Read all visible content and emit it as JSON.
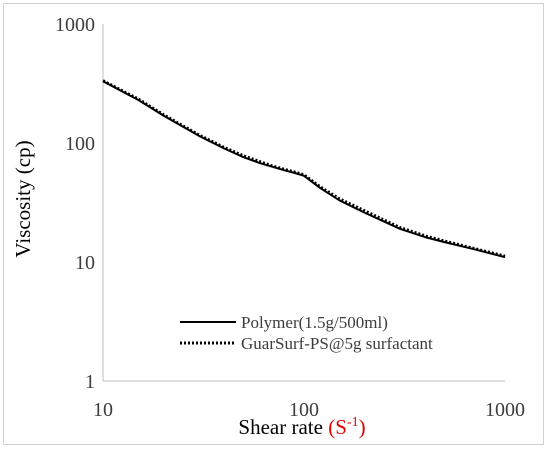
{
  "chart_data": {
    "type": "line",
    "title": "",
    "xlabel": "Shear rate",
    "xlabel_unit": "(S",
    "xlabel_unit_sup": "-1",
    "xlabel_unit_close": ")",
    "ylabel": "Viscosity (cp)",
    "xscale": "log",
    "yscale": "log",
    "xlim": [
      10,
      1000
    ],
    "ylim": [
      1,
      1000
    ],
    "xticks": [
      10,
      100,
      1000
    ],
    "xtick_labels": [
      "10",
      "100",
      "1000"
    ],
    "yticks": [
      1,
      10,
      100,
      1000
    ],
    "ytick_labels": [
      "1",
      "10",
      "100",
      "1000"
    ],
    "grid": false,
    "legend_position": "bottom-center",
    "series": [
      {
        "name": "Polymer(1.5g/500ml)",
        "style": "solid",
        "color": "#000000",
        "x": [
          10,
          15,
          20,
          30,
          40,
          50,
          60,
          70,
          80,
          90,
          100,
          120,
          150,
          200,
          300,
          400,
          500,
          700,
          1000
        ],
        "y": [
          330,
          230,
          170,
          115,
          90,
          76,
          68,
          63,
          59,
          56,
          53,
          42,
          33,
          26,
          19,
          16.2,
          14.7,
          12.8,
          11
        ]
      },
      {
        "name": "GuarSurf-PS@5g surfactant",
        "style": "dotted",
        "color": "#000000",
        "x": [
          10,
          15,
          20,
          30,
          40,
          50,
          60,
          70,
          80,
          90,
          100,
          120,
          150,
          200,
          300,
          400,
          500,
          700,
          1000
        ],
        "y": [
          334,
          234,
          173,
          117,
          92,
          78,
          70,
          64,
          60,
          57,
          54,
          43,
          34,
          27,
          19.5,
          16.6,
          15,
          13,
          11.2
        ]
      }
    ]
  }
}
